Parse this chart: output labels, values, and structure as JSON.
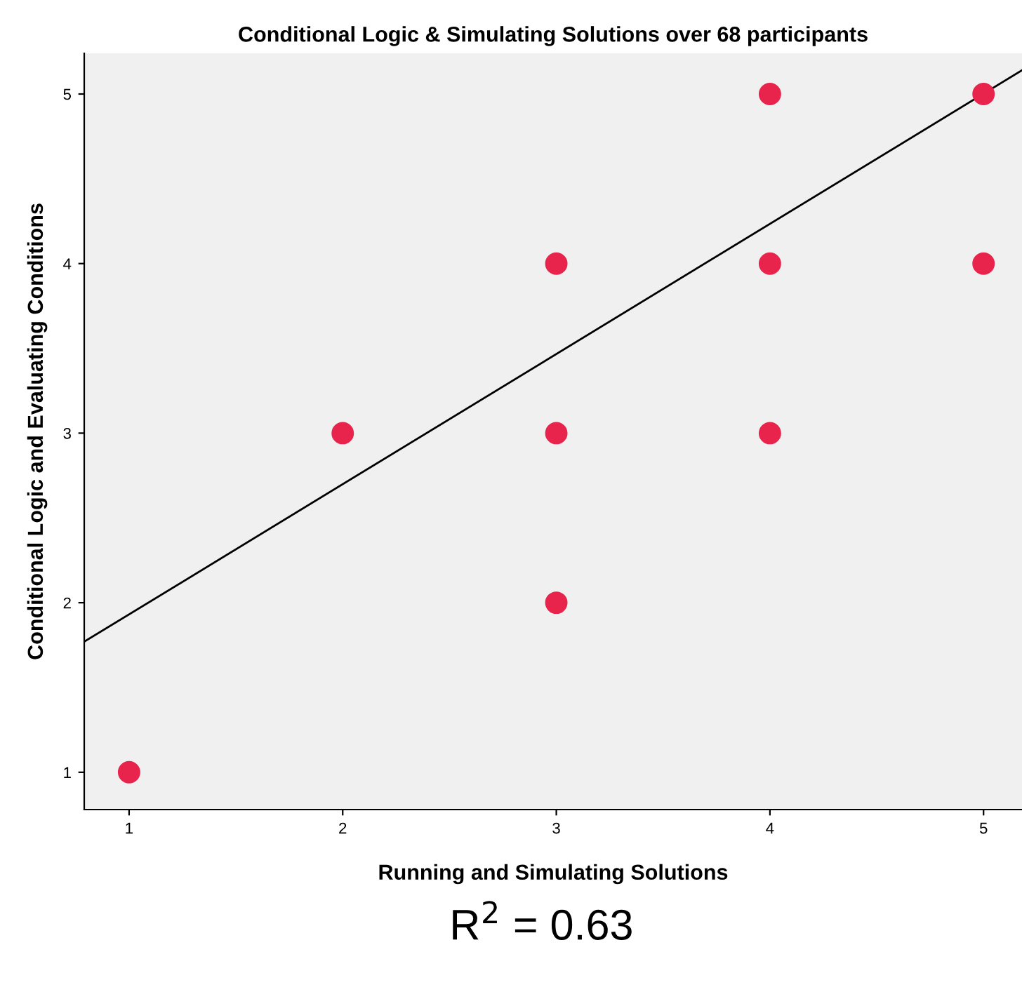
{
  "chart_data": {
    "type": "scatter",
    "title": "Conditional Logic & Simulating Solutions over 68 participants",
    "xlabel": "Running and Simulating Solutions",
    "ylabel": "Conditional Logic and Evaluating Conditions",
    "series": [
      {
        "marker": "circle",
        "color": "#e8244c",
        "x": [
          1,
          2,
          3,
          3,
          3,
          4,
          4,
          4,
          5,
          5
        ],
        "values": [
          1,
          3,
          4,
          3,
          2,
          5,
          4,
          3,
          5,
          4
        ]
      },
      {
        "type": "line",
        "marker": "none",
        "color": "#000000",
        "x": [
          0.79,
          5.18
        ],
        "values": [
          1.77,
          5.14
        ]
      }
    ],
    "xlim": [
      0.79,
      5.18
    ],
    "ylim": [
      0.78,
      5.24
    ],
    "xticks": [
      1,
      2,
      3,
      4,
      5
    ],
    "yticks": [
      1,
      2,
      3,
      4,
      5
    ],
    "grid": false,
    "annotations": [
      "R$^{2}$ = 0.63"
    ]
  }
}
